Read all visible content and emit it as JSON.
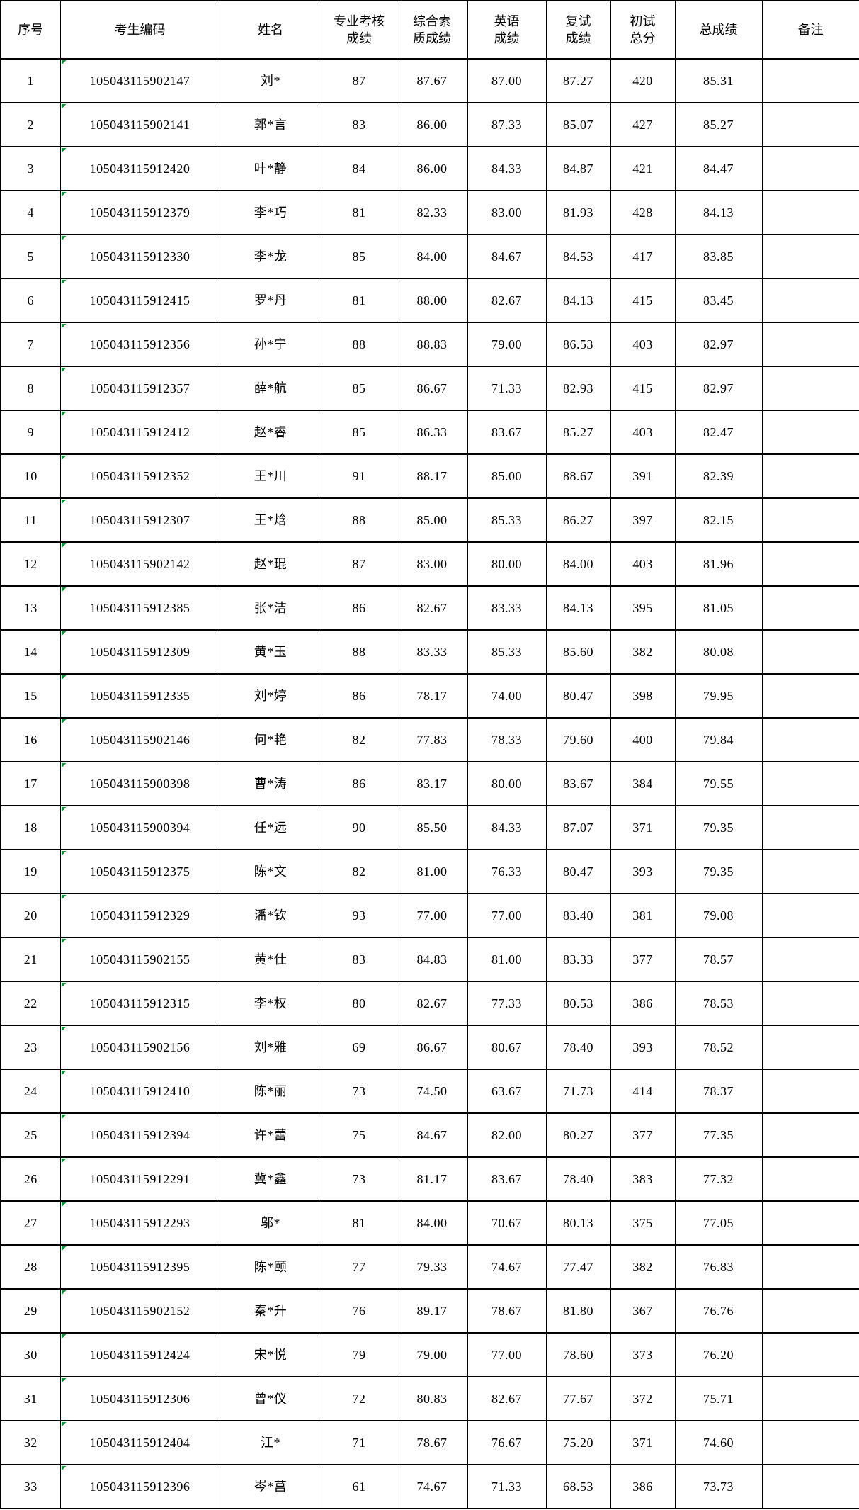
{
  "table": {
    "columns": [
      {
        "key": "index",
        "label": "序号"
      },
      {
        "key": "code",
        "label": "考生编码"
      },
      {
        "key": "name",
        "label": "姓名"
      },
      {
        "key": "professional",
        "label": "专业考核\n成绩"
      },
      {
        "key": "comprehensive",
        "label": "综合素\n质成绩"
      },
      {
        "key": "english",
        "label": "英语\n成绩"
      },
      {
        "key": "retest",
        "label": "复试\n成绩"
      },
      {
        "key": "initial_total",
        "label": "初试\n总分"
      },
      {
        "key": "total",
        "label": "总成绩"
      },
      {
        "key": "remarks",
        "label": "备注"
      }
    ],
    "rows": [
      {
        "index": "1",
        "code": "105043115902147",
        "name": "刘*",
        "professional": "87",
        "comprehensive": "87.67",
        "english": "87.00",
        "retest": "87.27",
        "initial_total": "420",
        "total": "85.31",
        "remarks": ""
      },
      {
        "index": "2",
        "code": "105043115902141",
        "name": "郭*言",
        "professional": "83",
        "comprehensive": "86.00",
        "english": "87.33",
        "retest": "85.07",
        "initial_total": "427",
        "total": "85.27",
        "remarks": ""
      },
      {
        "index": "3",
        "code": "105043115912420",
        "name": "叶*静",
        "professional": "84",
        "comprehensive": "86.00",
        "english": "84.33",
        "retest": "84.87",
        "initial_total": "421",
        "total": "84.47",
        "remarks": ""
      },
      {
        "index": "4",
        "code": "105043115912379",
        "name": "李*巧",
        "professional": "81",
        "comprehensive": "82.33",
        "english": "83.00",
        "retest": "81.93",
        "initial_total": "428",
        "total": "84.13",
        "remarks": ""
      },
      {
        "index": "5",
        "code": "105043115912330",
        "name": "李*龙",
        "professional": "85",
        "comprehensive": "84.00",
        "english": "84.67",
        "retest": "84.53",
        "initial_total": "417",
        "total": "83.85",
        "remarks": ""
      },
      {
        "index": "6",
        "code": "105043115912415",
        "name": "罗*丹",
        "professional": "81",
        "comprehensive": "88.00",
        "english": "82.67",
        "retest": "84.13",
        "initial_total": "415",
        "total": "83.45",
        "remarks": ""
      },
      {
        "index": "7",
        "code": "105043115912356",
        "name": "孙*宁",
        "professional": "88",
        "comprehensive": "88.83",
        "english": "79.00",
        "retest": "86.53",
        "initial_total": "403",
        "total": "82.97",
        "remarks": ""
      },
      {
        "index": "8",
        "code": "105043115912357",
        "name": "薛*航",
        "professional": "85",
        "comprehensive": "86.67",
        "english": "71.33",
        "retest": "82.93",
        "initial_total": "415",
        "total": "82.97",
        "remarks": ""
      },
      {
        "index": "9",
        "code": "105043115912412",
        "name": "赵*睿",
        "professional": "85",
        "comprehensive": "86.33",
        "english": "83.67",
        "retest": "85.27",
        "initial_total": "403",
        "total": "82.47",
        "remarks": ""
      },
      {
        "index": "10",
        "code": "105043115912352",
        "name": "王*川",
        "professional": "91",
        "comprehensive": "88.17",
        "english": "85.00",
        "retest": "88.67",
        "initial_total": "391",
        "total": "82.39",
        "remarks": ""
      },
      {
        "index": "11",
        "code": "105043115912307",
        "name": "王*焓",
        "professional": "88",
        "comprehensive": "85.00",
        "english": "85.33",
        "retest": "86.27",
        "initial_total": "397",
        "total": "82.15",
        "remarks": ""
      },
      {
        "index": "12",
        "code": "105043115902142",
        "name": "赵*琨",
        "professional": "87",
        "comprehensive": "83.00",
        "english": "80.00",
        "retest": "84.00",
        "initial_total": "403",
        "total": "81.96",
        "remarks": ""
      },
      {
        "index": "13",
        "code": "105043115912385",
        "name": "张*洁",
        "professional": "86",
        "comprehensive": "82.67",
        "english": "83.33",
        "retest": "84.13",
        "initial_total": "395",
        "total": "81.05",
        "remarks": ""
      },
      {
        "index": "14",
        "code": "105043115912309",
        "name": "黄*玉",
        "professional": "88",
        "comprehensive": "83.33",
        "english": "85.33",
        "retest": "85.60",
        "initial_total": "382",
        "total": "80.08",
        "remarks": ""
      },
      {
        "index": "15",
        "code": "105043115912335",
        "name": "刘*婷",
        "professional": "86",
        "comprehensive": "78.17",
        "english": "74.00",
        "retest": "80.47",
        "initial_total": "398",
        "total": "79.95",
        "remarks": ""
      },
      {
        "index": "16",
        "code": "105043115902146",
        "name": "何*艳",
        "professional": "82",
        "comprehensive": "77.83",
        "english": "78.33",
        "retest": "79.60",
        "initial_total": "400",
        "total": "79.84",
        "remarks": ""
      },
      {
        "index": "17",
        "code": "105043115900398",
        "name": "曹*涛",
        "professional": "86",
        "comprehensive": "83.17",
        "english": "80.00",
        "retest": "83.67",
        "initial_total": "384",
        "total": "79.55",
        "remarks": ""
      },
      {
        "index": "18",
        "code": "105043115900394",
        "name": "任*远",
        "professional": "90",
        "comprehensive": "85.50",
        "english": "84.33",
        "retest": "87.07",
        "initial_total": "371",
        "total": "79.35",
        "remarks": ""
      },
      {
        "index": "19",
        "code": "105043115912375",
        "name": "陈*文",
        "professional": "82",
        "comprehensive": "81.00",
        "english": "76.33",
        "retest": "80.47",
        "initial_total": "393",
        "total": "79.35",
        "remarks": ""
      },
      {
        "index": "20",
        "code": "105043115912329",
        "name": "潘*钦",
        "professional": "93",
        "comprehensive": "77.00",
        "english": "77.00",
        "retest": "83.40",
        "initial_total": "381",
        "total": "79.08",
        "remarks": ""
      },
      {
        "index": "21",
        "code": "105043115902155",
        "name": "黄*仕",
        "professional": "83",
        "comprehensive": "84.83",
        "english": "81.00",
        "retest": "83.33",
        "initial_total": "377",
        "total": "78.57",
        "remarks": ""
      },
      {
        "index": "22",
        "code": "105043115912315",
        "name": "李*权",
        "professional": "80",
        "comprehensive": "82.67",
        "english": "77.33",
        "retest": "80.53",
        "initial_total": "386",
        "total": "78.53",
        "remarks": ""
      },
      {
        "index": "23",
        "code": "105043115902156",
        "name": "刘*雅",
        "professional": "69",
        "comprehensive": "86.67",
        "english": "80.67",
        "retest": "78.40",
        "initial_total": "393",
        "total": "78.52",
        "remarks": ""
      },
      {
        "index": "24",
        "code": "105043115912410",
        "name": "陈*丽",
        "professional": "73",
        "comprehensive": "74.50",
        "english": "63.67",
        "retest": "71.73",
        "initial_total": "414",
        "total": "78.37",
        "remarks": ""
      },
      {
        "index": "25",
        "code": "105043115912394",
        "name": "许*蕾",
        "professional": "75",
        "comprehensive": "84.67",
        "english": "82.00",
        "retest": "80.27",
        "initial_total": "377",
        "total": "77.35",
        "remarks": ""
      },
      {
        "index": "26",
        "code": "105043115912291",
        "name": "冀*鑫",
        "professional": "73",
        "comprehensive": "81.17",
        "english": "83.67",
        "retest": "78.40",
        "initial_total": "383",
        "total": "77.32",
        "remarks": ""
      },
      {
        "index": "27",
        "code": "105043115912293",
        "name": "邬*",
        "professional": "81",
        "comprehensive": "84.00",
        "english": "70.67",
        "retest": "80.13",
        "initial_total": "375",
        "total": "77.05",
        "remarks": ""
      },
      {
        "index": "28",
        "code": "105043115912395",
        "name": "陈*颐",
        "professional": "77",
        "comprehensive": "79.33",
        "english": "74.67",
        "retest": "77.47",
        "initial_total": "382",
        "total": "76.83",
        "remarks": ""
      },
      {
        "index": "29",
        "code": "105043115902152",
        "name": "秦*升",
        "professional": "76",
        "comprehensive": "89.17",
        "english": "78.67",
        "retest": "81.80",
        "initial_total": "367",
        "total": "76.76",
        "remarks": ""
      },
      {
        "index": "30",
        "code": "105043115912424",
        "name": "宋*悦",
        "professional": "79",
        "comprehensive": "79.00",
        "english": "77.00",
        "retest": "78.60",
        "initial_total": "373",
        "total": "76.20",
        "remarks": ""
      },
      {
        "index": "31",
        "code": "105043115912306",
        "name": "曾*仪",
        "professional": "72",
        "comprehensive": "80.83",
        "english": "82.67",
        "retest": "77.67",
        "initial_total": "372",
        "total": "75.71",
        "remarks": ""
      },
      {
        "index": "32",
        "code": "105043115912404",
        "name": "江*",
        "professional": "71",
        "comprehensive": "78.67",
        "english": "76.67",
        "retest": "75.20",
        "initial_total": "371",
        "total": "74.60",
        "remarks": ""
      },
      {
        "index": "33",
        "code": "105043115912396",
        "name": "岑*莒",
        "professional": "61",
        "comprehensive": "74.67",
        "english": "71.33",
        "retest": "68.53",
        "initial_total": "386",
        "total": "73.73",
        "remarks": ""
      }
    ]
  },
  "colors": {
    "border": "#000000",
    "text": "#000000",
    "background": "#ffffff",
    "flag_green": "#009632"
  }
}
